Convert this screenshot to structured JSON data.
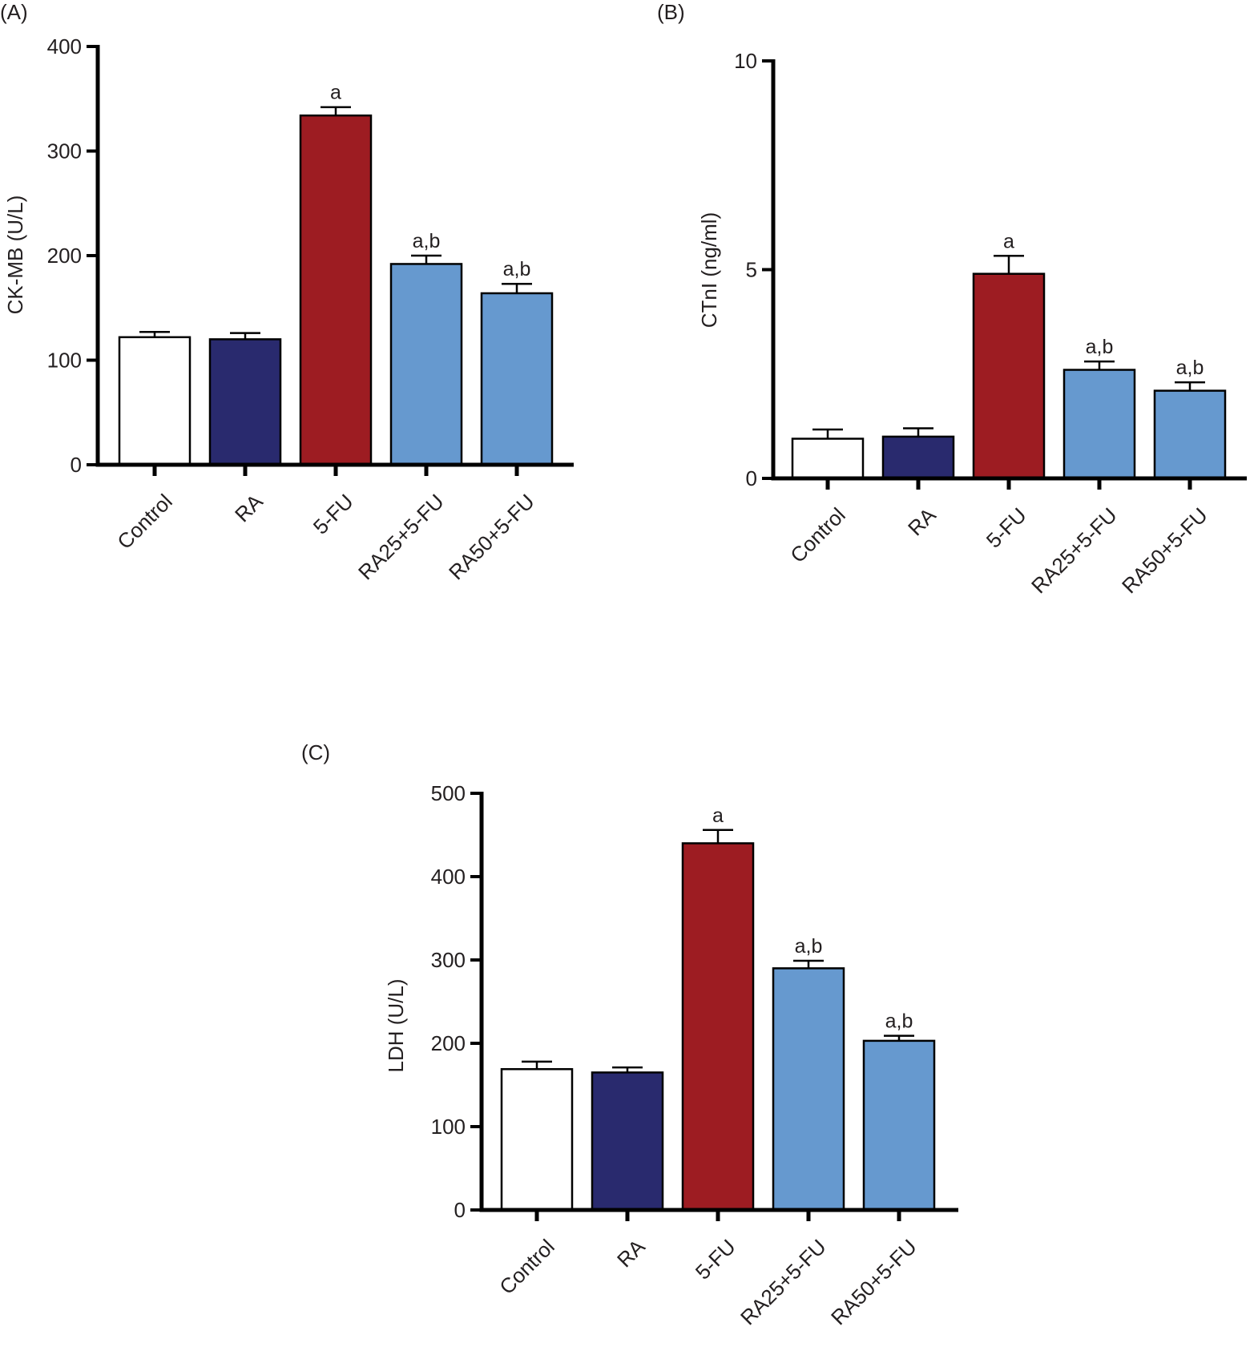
{
  "figure": {
    "panels": [
      {
        "id": "A",
        "label": "(A)"
      },
      {
        "id": "B",
        "label": "(B)"
      },
      {
        "id": "C",
        "label": "(C)"
      }
    ]
  },
  "colors": {
    "Control": "#ffffff",
    "RA": "#292a6e",
    "5-FU": "#9d1c22",
    "RA25+5-FU": "#6699cf",
    "RA50+5-FU": "#6699cf",
    "axis": "#000000",
    "text": "#231f20",
    "errorbar": "#000000"
  },
  "chart_data": [
    {
      "panel": "(A)",
      "type": "bar",
      "title": "",
      "xlabel": "",
      "ylabel": "CK-MB (U/L)",
      "categories": [
        "Control",
        "RA",
        "5-FU",
        "RA25+5-FU",
        "RA50+5-FU"
      ],
      "values": [
        122,
        120,
        334,
        192,
        164
      ],
      "errors": [
        5,
        6,
        8,
        8,
        9
      ],
      "annotations": [
        "",
        "",
        "a",
        "a,b",
        "a,b"
      ],
      "ylim": [
        0,
        400
      ],
      "yticks": [
        0,
        100,
        200,
        300,
        400
      ],
      "ytick_labels": [
        "0",
        "100",
        "200",
        "300",
        "400"
      ],
      "grid": false,
      "legend": "none"
    },
    {
      "panel": "(B)",
      "type": "bar",
      "title": "",
      "xlabel": "",
      "ylabel": "CTnI (ng/ml)",
      "categories": [
        "Control",
        "RA",
        "5-FU",
        "RA25+5-FU",
        "RA50+5-FU"
      ],
      "values": [
        0.95,
        1.0,
        4.9,
        2.6,
        2.1
      ],
      "errors": [
        0.22,
        0.2,
        0.43,
        0.2,
        0.2
      ],
      "annotations": [
        "",
        "",
        "a",
        "a,b",
        "a,b"
      ],
      "ylim": [
        0,
        10
      ],
      "yticks": [
        0,
        5,
        10
      ],
      "ytick_labels": [
        "0",
        "5",
        "10"
      ],
      "grid": false,
      "legend": "none"
    },
    {
      "panel": "(C)",
      "type": "bar",
      "title": "",
      "xlabel": "",
      "ylabel": "LDH (U/L)",
      "categories": [
        "Control",
        "RA",
        "5-FU",
        "RA25+5-FU",
        "RA50+5-FU"
      ],
      "values": [
        169,
        165,
        440,
        290,
        203
      ],
      "errors": [
        9,
        6,
        16,
        9,
        6
      ],
      "annotations": [
        "",
        "",
        "a",
        "a,b",
        "a,b"
      ],
      "ylim": [
        0,
        500
      ],
      "yticks": [
        0,
        100,
        200,
        300,
        400,
        500
      ],
      "ytick_labels": [
        "0",
        "100",
        "200",
        "300",
        "400",
        "500"
      ],
      "grid": false,
      "legend": "none"
    }
  ]
}
